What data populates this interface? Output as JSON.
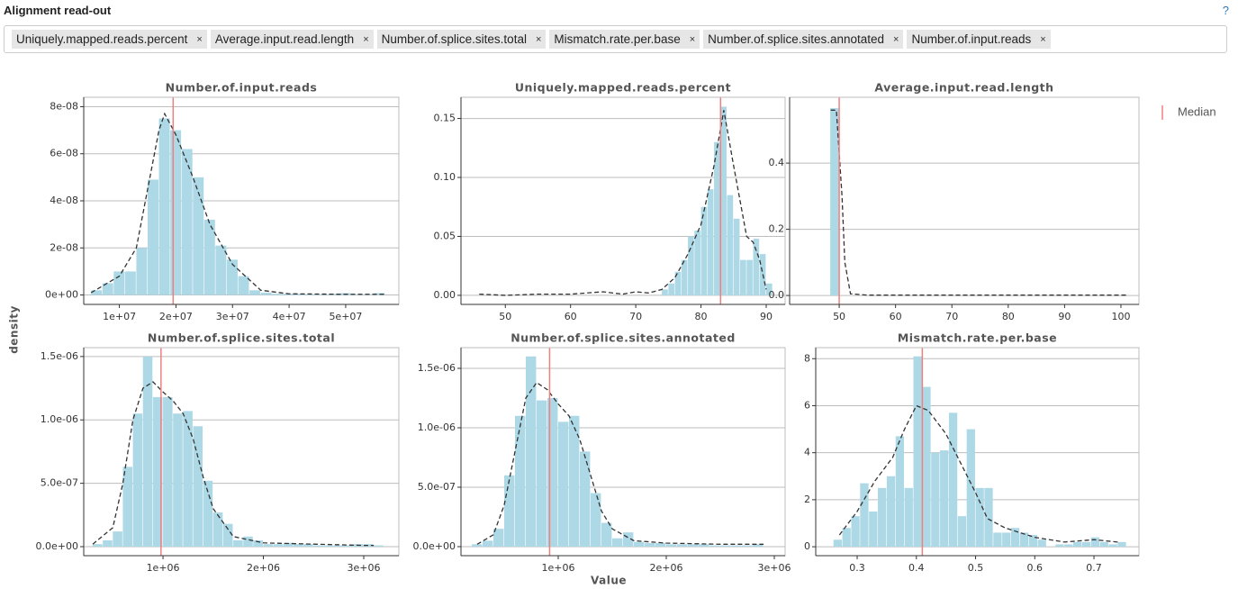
{
  "header": {
    "title": "Alignment read-out",
    "help": "?"
  },
  "tags": {
    "labels": [
      "Uniquely.mapped.reads.percent",
      "Average.input.read.length",
      "Number.of.splice.sites.total",
      "Mismatch.rate.per.base",
      "Number.of.splice.sites.annotated",
      "Number.of.input.reads"
    ],
    "remove": "×"
  },
  "legend": {
    "label": "Median",
    "color": "#f08080"
  },
  "ylabel": "density",
  "xlabel": "Value",
  "chart_data": [
    {
      "type": "histogram",
      "title": "Number.of.input.reads",
      "color": "#add8e6",
      "grid": true,
      "bins": [
        5000000,
        7000000,
        9000000,
        11000000,
        13000000,
        15000000,
        17000000,
        19000000,
        21000000,
        23000000,
        25000000,
        27000000,
        29000000,
        31000000,
        33000000,
        35000000,
        37000000,
        39000000,
        41000000,
        43000000,
        45000000,
        47000000,
        49000000,
        51000000,
        53000000,
        55000000,
        57000000
      ],
      "values": [
        2e-09,
        5e-09,
        1e-08,
        1e-08,
        2e-08,
        4.9e-08,
        7.5e-08,
        7e-08,
        6.2e-08,
        5e-08,
        3.2e-08,
        2.1e-08,
        1.5e-08,
        8e-09,
        2e-09,
        1e-09,
        5e-10,
        5e-10,
        5e-10,
        3e-10,
        3e-10,
        5e-10,
        8e-10,
        3e-10,
        3e-10,
        8e-10
      ],
      "kde": {
        "color": "#333333",
        "x": [
          5000000,
          10000000,
          13000000,
          15000000,
          17000000,
          18000000,
          20000000,
          23000000,
          26000000,
          30000000,
          35000000,
          40000000,
          50000000,
          57000000
        ],
        "values": [
          1e-09,
          8e-09,
          2e-08,
          4.5e-08,
          7e-08,
          7.7e-08,
          6.8e-08,
          5e-08,
          3e-08,
          1.3e-08,
          2e-09,
          5e-10,
          3e-10,
          3e-10
        ]
      },
      "median": 19500000,
      "xlim": [
        3700000,
        59400000
      ],
      "ylim": [
        -4e-09,
        8.4e-08
      ],
      "xticks": [
        {
          "value": 10000000,
          "label": "1e+07"
        },
        {
          "value": 20000000,
          "label": "2e+07"
        },
        {
          "value": 30000000,
          "label": "3e+07"
        },
        {
          "value": 40000000,
          "label": "4e+07"
        },
        {
          "value": 50000000,
          "label": "5e+07"
        }
      ],
      "yticks": [
        {
          "value": 0,
          "label": "0e+00"
        },
        {
          "value": 2e-08,
          "label": "2e-08"
        },
        {
          "value": 4e-08,
          "label": "4e-08"
        },
        {
          "value": 6e-08,
          "label": "6e-08"
        },
        {
          "value": 8e-08,
          "label": "8e-08"
        }
      ]
    },
    {
      "type": "histogram",
      "title": "Uniquely.mapped.reads.percent",
      "color": "#add8e6",
      "grid": true,
      "bins": [
        74,
        75,
        76,
        77,
        78,
        79,
        80,
        81,
        82,
        83,
        84,
        85,
        86,
        87,
        88,
        89,
        90,
        91
      ],
      "values": [
        0.005,
        0.01,
        0.02,
        0.03,
        0.05,
        0.055,
        0.075,
        0.09,
        0.13,
        0.16,
        0.085,
        0.065,
        0.03,
        0.03,
        0.048,
        0.035,
        0.01
      ],
      "kde": {
        "color": "#333333",
        "x": [
          46,
          50,
          55,
          60,
          65,
          68,
          70,
          72,
          74,
          76,
          78,
          80,
          82,
          83.5,
          85,
          87,
          88,
          89,
          90
        ],
        "values": [
          0.001,
          0,
          0.001,
          0.001,
          0.003,
          0.001,
          0.003,
          0.002,
          0.005,
          0.015,
          0.035,
          0.06,
          0.11,
          0.157,
          0.11,
          0.05,
          0.045,
          0.03,
          0.005
        ]
      },
      "median": 83,
      "xlim": [
        43.2,
        92.9
      ],
      "ylim": [
        -0.0077,
        0.168
      ],
      "xticks": [
        50,
        60,
        70,
        80,
        90
      ],
      "yticks": [
        {
          "value": 0,
          "label": "0.00"
        },
        0.05,
        {
          "value": 0.1,
          "label": "0.10"
        },
        0.15
      ]
    },
    {
      "type": "histogram",
      "title": "Average.input.read.length",
      "color": "#add8e6",
      "grid": true,
      "bins": [
        48.4,
        50
      ],
      "values": [
        0.566
      ],
      "kde": {
        "color": "#333333",
        "x": [
          48.5,
          49.5,
          50.5,
          51,
          52,
          55,
          60,
          80,
          101
        ],
        "values": [
          0.56,
          0.56,
          0.3,
          0.1,
          0.005,
          0.001,
          0.001,
          0.001,
          0.001
        ]
      },
      "median": 50,
      "xlim": [
        41.2,
        103.2
      ],
      "ylim": [
        -0.027,
        0.599
      ],
      "xticks": [
        50,
        60,
        70,
        80,
        90,
        100
      ],
      "yticks": [
        {
          "value": 0,
          "label": "0.0"
        },
        0.2,
        0.4
      ]
    },
    {
      "type": "histogram",
      "title": "Number.of.splice.sites.total",
      "color": "#add8e6",
      "grid": true,
      "bins": [
        300000,
        400000,
        500000,
        600000,
        700000,
        800000,
        900000,
        1000000,
        1100000,
        1200000,
        1300000,
        1400000,
        1500000,
        1600000,
        1700000,
        1800000,
        1900000,
        2000000,
        2100000,
        2200000,
        2300000,
        2400000,
        2500000,
        2600000,
        2700000,
        2800000,
        2900000,
        3000000,
        3100000,
        3200000
      ],
      "values": [
        2e-08,
        5e-08,
        1.2e-07,
        6.3e-07,
        1.05e-06,
        1.5e-06,
        1.18e-06,
        1.18e-06,
        1.05e-06,
        1.07e-06,
        9.5e-07,
        5.2e-07,
        2.7e-07,
        1.8e-07,
        5e-08,
        8e-08,
        5e-08,
        2e-08,
        2e-08,
        3e-08,
        2e-08,
        2e-08,
        1e-08,
        1e-08,
        1e-08,
        1e-08,
        2e-08,
        2e-08,
        1e-08
      ],
      "kde": {
        "color": "#333333",
        "x": [
          300000,
          500000,
          600000,
          700000,
          800000,
          900000,
          1000000,
          1100000,
          1200000,
          1300000,
          1400000,
          1500000,
          1700000,
          2000000,
          2500000,
          3000000,
          3100000
        ],
        "values": [
          2e-08,
          1.5e-07,
          5e-07,
          1e-06,
          1.25e-06,
          1.3e-06,
          1.22e-06,
          1.15e-06,
          1.05e-06,
          8.5e-07,
          5.5e-07,
          3e-07,
          8e-08,
          3e-08,
          2e-08,
          1e-08,
          1e-08
        ]
      },
      "median": 980000,
      "xlim": [
        210000,
        3350000
      ],
      "ylim": [
        -7.1e-08,
        1.57e-06
      ],
      "xticks": [
        {
          "value": 1000000,
          "label": "1e+06"
        },
        {
          "value": 2000000,
          "label": "2e+06"
        },
        {
          "value": 3000000,
          "label": "3e+06"
        }
      ],
      "yticks": [
        {
          "value": 0,
          "label": "0.0e+00"
        },
        {
          "value": 5e-07,
          "label": "5.0e-07"
        },
        {
          "value": 1e-06,
          "label": "1.0e-06"
        },
        {
          "value": 1.5e-06,
          "label": "1.5e-06"
        }
      ]
    },
    {
      "type": "histogram",
      "title": "Number.of.splice.sites.annotated",
      "color": "#add8e6",
      "grid": true,
      "bins": [
        200000,
        300000,
        400000,
        500000,
        600000,
        700000,
        800000,
        900000,
        1000000,
        1100000,
        1200000,
        1300000,
        1400000,
        1500000,
        1600000,
        1700000,
        1800000,
        1900000,
        2000000,
        2100000,
        2200000,
        2300000,
        2400000,
        2500000,
        2600000,
        2700000,
        2800000,
        2900000
      ],
      "values": [
        2e-08,
        5e-08,
        1.5e-07,
        6e-07,
        1.1e-06,
        1.6e-06,
        1.23e-06,
        1.25e-06,
        1.05e-06,
        1.1e-06,
        8e-07,
        4.5e-07,
        2e-07,
        7e-08,
        1.2e-07,
        4e-08,
        3e-08,
        3e-08,
        2e-08,
        2e-08,
        2e-08,
        2e-08,
        1e-08,
        1e-08,
        1e-08,
        1e-08,
        2e-08
      ],
      "kde": {
        "color": "#333333",
        "x": [
          250000,
          400000,
          500000,
          600000,
          700000,
          800000,
          900000,
          1000000,
          1100000,
          1200000,
          1300000,
          1400000,
          1500000,
          1700000,
          2000000,
          2500000,
          2900000
        ],
        "values": [
          2e-08,
          1e-07,
          3.5e-07,
          8e-07,
          1.25e-06,
          1.38e-06,
          1.32e-06,
          1.2e-06,
          1.1e-06,
          9e-07,
          6e-07,
          3e-07,
          1.5e-07,
          5e-08,
          3e-08,
          2e-08,
          2e-08
        ]
      },
      "median": 920000,
      "xlim": [
        100000,
        3100000
      ],
      "ylim": [
        -7.6e-08,
        1.674e-06
      ],
      "xticks": [
        {
          "value": 1000000,
          "label": "1e+06"
        },
        {
          "value": 2000000,
          "label": "2e+06"
        },
        {
          "value": 3000000,
          "label": "3e+06"
        }
      ],
      "yticks": [
        {
          "value": 0,
          "label": "0.0e+00"
        },
        {
          "value": 5e-07,
          "label": "5.0e-07"
        },
        {
          "value": 1e-06,
          "label": "1.0e-06"
        },
        {
          "value": 1.5e-06,
          "label": "1.5e-06"
        }
      ]
    },
    {
      "type": "histogram",
      "title": "Mismatch.rate.per.base",
      "color": "#add8e6",
      "grid": true,
      "bins": [
        0.26,
        0.275,
        0.29,
        0.305,
        0.32,
        0.335,
        0.35,
        0.365,
        0.38,
        0.395,
        0.41,
        0.425,
        0.44,
        0.455,
        0.47,
        0.485,
        0.5,
        0.515,
        0.53,
        0.545,
        0.56,
        0.575,
        0.59,
        0.605,
        0.62,
        0.635,
        0.65,
        0.665,
        0.68,
        0.695,
        0.71,
        0.725,
        0.74,
        0.755
      ],
      "values": [
        0.3,
        0.8,
        1.3,
        2.7,
        1.5,
        2.5,
        3.0,
        4.7,
        2.5,
        8.1,
        6.8,
        4.0,
        4.1,
        5.7,
        1.3,
        5.0,
        2.5,
        2.5,
        0.6,
        0.6,
        0.8,
        0.6,
        0.5,
        0.3,
        0,
        0.1,
        0.1,
        0.2,
        0.2,
        0.4,
        0.2,
        0.1,
        0.2
      ],
      "kde": {
        "color": "#333333",
        "x": [
          0.27,
          0.3,
          0.33,
          0.36,
          0.38,
          0.4,
          0.42,
          0.45,
          0.48,
          0.5,
          0.52,
          0.55,
          0.6,
          0.65,
          0.7,
          0.74
        ],
        "values": [
          0.5,
          1.5,
          2.8,
          3.8,
          5.0,
          6.0,
          5.8,
          4.8,
          3.3,
          2.3,
          1.2,
          0.8,
          0.4,
          0.2,
          0.3,
          0.2
        ]
      },
      "median": 0.41,
      "xlim": [
        0.23,
        0.776
      ],
      "ylim": [
        -0.38,
        8.47
      ],
      "xticks": [
        0.3,
        0.4,
        0.5,
        0.6,
        0.7
      ],
      "yticks": [
        0,
        2,
        4,
        6,
        8
      ]
    }
  ]
}
